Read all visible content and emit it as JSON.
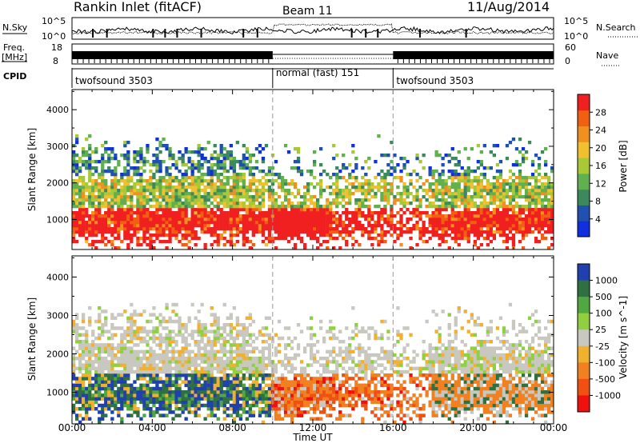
{
  "header": {
    "title": "Rankin Inlet (fitACF)",
    "beam": "Beam 11",
    "date": "11/Aug/2014"
  },
  "strips": {
    "nsky": {
      "left_label": "N.Sky",
      "left_ticks": [
        "10^5",
        "10^0"
      ],
      "right_ticks": [
        "10^5",
        "10^0"
      ],
      "right_label": "N.Search"
    },
    "freq": {
      "left_label": "Freq.",
      "left_unit": "[MHz]",
      "left_ticks": [
        "18",
        "8"
      ],
      "right_ticks": [
        "60",
        "0"
      ],
      "right_label": "Nave"
    },
    "cpid": {
      "label": "CPID",
      "segments": [
        {
          "name": "twofsound 3503",
          "start": 0,
          "end": 10
        },
        {
          "name": "normal (fast) 151",
          "start": 10,
          "end": 16
        },
        {
          "name": "twofsound 3503",
          "start": 16,
          "end": 24
        }
      ]
    }
  },
  "axes": {
    "xlabel": "Time UT",
    "xticks": [
      "00:00",
      "04:00",
      "08:00",
      "12:00",
      "16:00",
      "20:00",
      "00:00"
    ],
    "ylabel": "Slant Range [km]",
    "yticks": [
      "1000",
      "2000",
      "3000",
      "4000"
    ]
  },
  "power_scale": {
    "label": "Power [dB]",
    "ticks": [
      "4",
      "8",
      "12",
      "16",
      "20",
      "24",
      "28"
    ],
    "colors": [
      "#1030e0",
      "#2050b0",
      "#3c8a5c",
      "#60b050",
      "#a8c838",
      "#f0c030",
      "#f09020",
      "#f06010",
      "#f02020"
    ]
  },
  "velocity_scale": {
    "label": "Velocity [m s^-1]",
    "ticks": [
      "1000",
      "500",
      "100",
      "25",
      "-25",
      "-100",
      "-500",
      "-1000"
    ],
    "colors": [
      "#2040b0",
      "#2e7040",
      "#50a840",
      "#90d040",
      "#c8c8c0",
      "#f0b030",
      "#f08020",
      "#f05010",
      "#f01010"
    ]
  },
  "chart_data": [
    {
      "type": "heatmap",
      "title": "Rankin Inlet (fitACF)",
      "quantity": "Power",
      "unit": "dB",
      "xlabel": "Time UT",
      "ylabel": "Slant Range [km]",
      "x_range_hours": [
        0,
        24
      ],
      "y_range_km": [
        180,
        4550
      ],
      "color_range": [
        0,
        30
      ],
      "colorbar_ticks": [
        4,
        8,
        12,
        16,
        20,
        24,
        28
      ]
    },
    {
      "type": "heatmap",
      "quantity": "Velocity",
      "unit": "m s^-1",
      "xlabel": "Time UT",
      "ylabel": "Slant Range [km]",
      "x_range_hours": [
        0,
        24
      ],
      "y_range_km": [
        180,
        4550
      ],
      "colorbar_ticks": [
        1000,
        500,
        100,
        25,
        -25,
        -100,
        -500,
        -1000
      ]
    }
  ]
}
